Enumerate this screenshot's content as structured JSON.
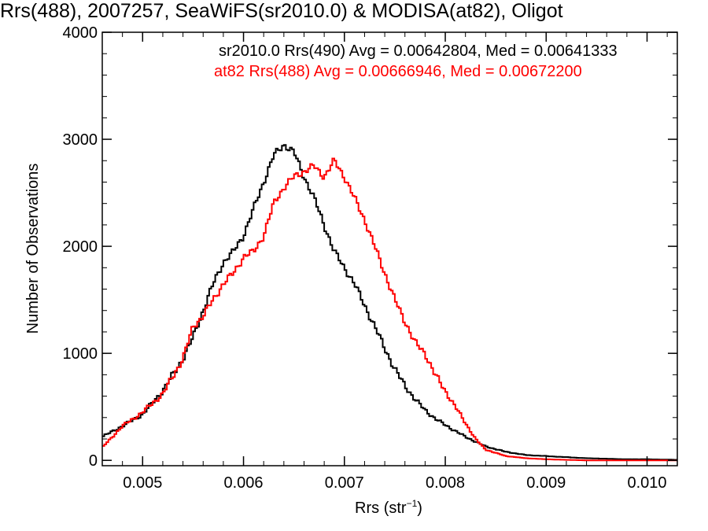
{
  "chart_data": {
    "type": "line",
    "step": true,
    "title": "Rrs(488), 2007257, SeaWiFS(sr2010.0) & MODISA(at82), Oligot",
    "xlabel": "Rrs (str",
    "xlabel_sup": "−1",
    "xlabel_end": ")",
    "ylabel": "Number of Observations",
    "xlim": [
      0.0046,
      0.0103
    ],
    "ylim": [
      -50,
      4000
    ],
    "xticks": [
      0.005,
      0.006,
      0.007,
      0.008,
      0.009,
      0.01
    ],
    "xtick_labels": [
      "0.005",
      "0.006",
      "0.007",
      "0.008",
      "0.009",
      "0.010"
    ],
    "yticks": [
      0,
      1000,
      2000,
      3000,
      4000
    ],
    "ytick_labels": [
      "0",
      "1000",
      "2000",
      "3000",
      "4000"
    ],
    "grid": false,
    "annotations": [
      {
        "text": "sr2010.0 Rrs(490) Avg = 0.00642804, Med = 0.00641333",
        "color": "#000000"
      },
      {
        "text": "at82 Rrs(488) Avg = 0.00666946, Med = 0.00672200",
        "color": "#ff0000"
      }
    ],
    "series": [
      {
        "color": "#000000",
        "x": [
          0.0046,
          0.0048,
          0.005,
          0.0052,
          0.0054,
          0.0055,
          0.0056,
          0.0057,
          0.0058,
          0.0059,
          0.006,
          0.0061,
          0.0062,
          0.0063,
          0.0064,
          0.0065,
          0.0066,
          0.0067,
          0.0068,
          0.0069,
          0.007,
          0.0071,
          0.0072,
          0.0073,
          0.0074,
          0.0075,
          0.0076,
          0.0077,
          0.0078,
          0.0079,
          0.008,
          0.0082,
          0.0084,
          0.0086,
          0.0088,
          0.009,
          0.0092,
          0.0094,
          0.0096,
          0.0098,
          0.01,
          0.0103
        ],
        "y": [
          220,
          320,
          430,
          650,
          950,
          1150,
          1400,
          1650,
          1850,
          1950,
          2100,
          2350,
          2600,
          2850,
          2950,
          2880,
          2650,
          2450,
          2200,
          1950,
          1800,
          1650,
          1450,
          1250,
          1050,
          850,
          700,
          570,
          470,
          390,
          330,
          220,
          130,
          80,
          50,
          40,
          30,
          20,
          15,
          10,
          10,
          5
        ]
      },
      {
        "color": "#ff0000",
        "x": [
          0.0046,
          0.0048,
          0.005,
          0.0052,
          0.0054,
          0.0055,
          0.0056,
          0.0057,
          0.0058,
          0.0059,
          0.006,
          0.0061,
          0.0062,
          0.0063,
          0.0064,
          0.0065,
          0.0066,
          0.0067,
          0.0068,
          0.0069,
          0.007,
          0.0071,
          0.0072,
          0.0073,
          0.0074,
          0.0075,
          0.0076,
          0.0077,
          0.0078,
          0.0079,
          0.008,
          0.0081,
          0.0082,
          0.0083,
          0.0084,
          0.0086,
          0.0088,
          0.009,
          0.0092,
          0.0094,
          0.0096,
          0.0098,
          0.01,
          0.0103
        ],
        "y": [
          120,
          320,
          450,
          620,
          950,
          1250,
          1350,
          1500,
          1650,
          1750,
          1900,
          1950,
          2100,
          2400,
          2550,
          2650,
          2700,
          2750,
          2650,
          2800,
          2650,
          2450,
          2250,
          2000,
          1750,
          1500,
          1300,
          1100,
          1000,
          800,
          650,
          500,
          350,
          200,
          100,
          40,
          20,
          10,
          5,
          0,
          0,
          0,
          0,
          0
        ]
      }
    ]
  }
}
